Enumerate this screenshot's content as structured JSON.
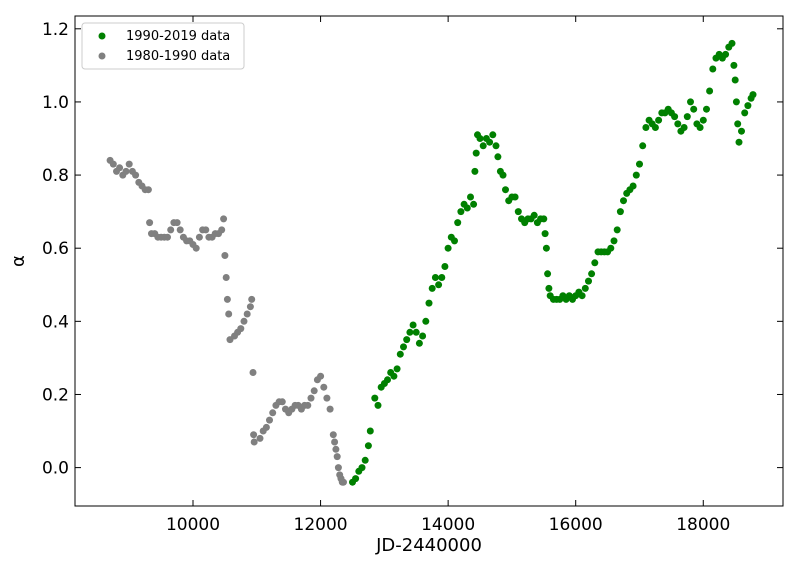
{
  "chart_data": {
    "type": "scatter",
    "title": "",
    "xlabel": "JD-2440000",
    "ylabel": "α",
    "xlim": [
      8150,
      19250
    ],
    "ylim": [
      -0.105,
      1.235
    ],
    "xticks": [
      10000,
      12000,
      14000,
      16000,
      18000
    ],
    "xtick_labels": [
      "10000",
      "12000",
      "14000",
      "16000",
      "18000"
    ],
    "yticks": [
      0.0,
      0.2,
      0.4,
      0.6,
      0.8,
      1.0,
      1.2
    ],
    "ytick_labels": [
      "0.0",
      "0.2",
      "0.4",
      "0.6",
      "0.8",
      "1.0",
      "1.2"
    ],
    "grid": false,
    "legend_position": "top-left",
    "series": [
      {
        "name": "1990-2019 data",
        "color": "#008000",
        "points": [
          [
            12500,
            -0.04
          ],
          [
            12550,
            -0.03
          ],
          [
            12600,
            -0.01
          ],
          [
            12650,
            0.0
          ],
          [
            12700,
            0.02
          ],
          [
            12750,
            0.06
          ],
          [
            12780,
            0.1
          ],
          [
            12850,
            0.19
          ],
          [
            12900,
            0.17
          ],
          [
            12950,
            0.22
          ],
          [
            13000,
            0.23
          ],
          [
            13050,
            0.24
          ],
          [
            13100,
            0.26
          ],
          [
            13150,
            0.25
          ],
          [
            13200,
            0.27
          ],
          [
            13250,
            0.31
          ],
          [
            13300,
            0.33
          ],
          [
            13350,
            0.35
          ],
          [
            13400,
            0.37
          ],
          [
            13450,
            0.39
          ],
          [
            13500,
            0.37
          ],
          [
            13550,
            0.34
          ],
          [
            13600,
            0.36
          ],
          [
            13650,
            0.4
          ],
          [
            13700,
            0.45
          ],
          [
            13750,
            0.49
          ],
          [
            13800,
            0.52
          ],
          [
            13850,
            0.5
          ],
          [
            13900,
            0.52
          ],
          [
            13950,
            0.55
          ],
          [
            14000,
            0.6
          ],
          [
            14050,
            0.63
          ],
          [
            14100,
            0.62
          ],
          [
            14150,
            0.67
          ],
          [
            14200,
            0.7
          ],
          [
            14250,
            0.72
          ],
          [
            14300,
            0.71
          ],
          [
            14350,
            0.74
          ],
          [
            14400,
            0.72
          ],
          [
            14420,
            0.81
          ],
          [
            14440,
            0.86
          ],
          [
            14460,
            0.91
          ],
          [
            14500,
            0.9
          ],
          [
            14550,
            0.88
          ],
          [
            14600,
            0.9
          ],
          [
            14650,
            0.89
          ],
          [
            14700,
            0.91
          ],
          [
            14750,
            0.88
          ],
          [
            14780,
            0.85
          ],
          [
            14820,
            0.81
          ],
          [
            14860,
            0.8
          ],
          [
            14900,
            0.76
          ],
          [
            14950,
            0.73
          ],
          [
            15000,
            0.74
          ],
          [
            15050,
            0.74
          ],
          [
            15100,
            0.7
          ],
          [
            15150,
            0.68
          ],
          [
            15200,
            0.67
          ],
          [
            15250,
            0.68
          ],
          [
            15300,
            0.68
          ],
          [
            15350,
            0.69
          ],
          [
            15400,
            0.67
          ],
          [
            15450,
            0.68
          ],
          [
            15500,
            0.68
          ],
          [
            15520,
            0.64
          ],
          [
            15540,
            0.6
          ],
          [
            15560,
            0.53
          ],
          [
            15580,
            0.49
          ],
          [
            15600,
            0.47
          ],
          [
            15650,
            0.46
          ],
          [
            15700,
            0.46
          ],
          [
            15750,
            0.46
          ],
          [
            15800,
            0.47
          ],
          [
            15850,
            0.46
          ],
          [
            15900,
            0.47
          ],
          [
            15950,
            0.46
          ],
          [
            16000,
            0.47
          ],
          [
            16050,
            0.48
          ],
          [
            16100,
            0.47
          ],
          [
            16150,
            0.49
          ],
          [
            16200,
            0.51
          ],
          [
            16250,
            0.53
          ],
          [
            16300,
            0.56
          ],
          [
            16350,
            0.59
          ],
          [
            16400,
            0.59
          ],
          [
            16450,
            0.59
          ],
          [
            16500,
            0.59
          ],
          [
            16550,
            0.6
          ],
          [
            16600,
            0.62
          ],
          [
            16650,
            0.65
          ],
          [
            16700,
            0.7
          ],
          [
            16750,
            0.73
          ],
          [
            16800,
            0.75
          ],
          [
            16850,
            0.76
          ],
          [
            16900,
            0.77
          ],
          [
            16950,
            0.8
          ],
          [
            17000,
            0.83
          ],
          [
            17050,
            0.88
          ],
          [
            17100,
            0.93
          ],
          [
            17150,
            0.95
          ],
          [
            17200,
            0.94
          ],
          [
            17250,
            0.93
          ],
          [
            17300,
            0.95
          ],
          [
            17350,
            0.97
          ],
          [
            17400,
            0.97
          ],
          [
            17450,
            0.98
          ],
          [
            17500,
            0.97
          ],
          [
            17550,
            0.96
          ],
          [
            17600,
            0.94
          ],
          [
            17650,
            0.92
          ],
          [
            17700,
            0.93
          ],
          [
            17750,
            0.96
          ],
          [
            17800,
            1.0
          ],
          [
            17850,
            0.98
          ],
          [
            17900,
            0.94
          ],
          [
            17950,
            0.93
          ],
          [
            18000,
            0.95
          ],
          [
            18050,
            0.98
          ],
          [
            18100,
            1.03
          ],
          [
            18150,
            1.09
          ],
          [
            18200,
            1.12
          ],
          [
            18250,
            1.13
          ],
          [
            18300,
            1.12
          ],
          [
            18350,
            1.13
          ],
          [
            18400,
            1.15
          ],
          [
            18450,
            1.16
          ],
          [
            18480,
            1.1
          ],
          [
            18500,
            1.06
          ],
          [
            18520,
            1.0
          ],
          [
            18540,
            0.94
          ],
          [
            18560,
            0.89
          ],
          [
            18600,
            0.92
          ],
          [
            18650,
            0.97
          ],
          [
            18700,
            0.99
          ],
          [
            18750,
            1.01
          ],
          [
            18780,
            1.02
          ]
        ]
      },
      {
        "name": "1980-1990 data",
        "color": "#808080",
        "points": [
          [
            8700,
            0.84
          ],
          [
            8750,
            0.83
          ],
          [
            8800,
            0.81
          ],
          [
            8850,
            0.82
          ],
          [
            8900,
            0.8
          ],
          [
            8950,
            0.81
          ],
          [
            9000,
            0.83
          ],
          [
            9050,
            0.81
          ],
          [
            9100,
            0.8
          ],
          [
            9150,
            0.78
          ],
          [
            9200,
            0.77
          ],
          [
            9250,
            0.76
          ],
          [
            9300,
            0.76
          ],
          [
            9320,
            0.67
          ],
          [
            9350,
            0.64
          ],
          [
            9400,
            0.64
          ],
          [
            9450,
            0.63
          ],
          [
            9500,
            0.63
          ],
          [
            9550,
            0.63
          ],
          [
            9600,
            0.63
          ],
          [
            9650,
            0.65
          ],
          [
            9700,
            0.67
          ],
          [
            9750,
            0.67
          ],
          [
            9800,
            0.65
          ],
          [
            9850,
            0.63
          ],
          [
            9900,
            0.62
          ],
          [
            9950,
            0.62
          ],
          [
            10000,
            0.61
          ],
          [
            10050,
            0.6
          ],
          [
            10100,
            0.63
          ],
          [
            10150,
            0.65
          ],
          [
            10200,
            0.65
          ],
          [
            10250,
            0.63
          ],
          [
            10300,
            0.63
          ],
          [
            10350,
            0.64
          ],
          [
            10400,
            0.64
          ],
          [
            10450,
            0.65
          ],
          [
            10480,
            0.68
          ],
          [
            10500,
            0.58
          ],
          [
            10520,
            0.52
          ],
          [
            10540,
            0.46
          ],
          [
            10560,
            0.42
          ],
          [
            10580,
            0.35
          ],
          [
            10650,
            0.36
          ],
          [
            10700,
            0.37
          ],
          [
            10750,
            0.38
          ],
          [
            10800,
            0.4
          ],
          [
            10850,
            0.42
          ],
          [
            10900,
            0.44
          ],
          [
            10920,
            0.46
          ],
          [
            10940,
            0.26
          ],
          [
            10950,
            0.09
          ],
          [
            10960,
            0.07
          ],
          [
            11050,
            0.08
          ],
          [
            11100,
            0.1
          ],
          [
            11150,
            0.11
          ],
          [
            11200,
            0.13
          ],
          [
            11250,
            0.15
          ],
          [
            11300,
            0.17
          ],
          [
            11350,
            0.18
          ],
          [
            11400,
            0.18
          ],
          [
            11450,
            0.16
          ],
          [
            11500,
            0.15
          ],
          [
            11550,
            0.16
          ],
          [
            11600,
            0.17
          ],
          [
            11650,
            0.17
          ],
          [
            11700,
            0.16
          ],
          [
            11750,
            0.17
          ],
          [
            11800,
            0.17
          ],
          [
            11850,
            0.19
          ],
          [
            11900,
            0.21
          ],
          [
            11950,
            0.24
          ],
          [
            12000,
            0.25
          ],
          [
            12050,
            0.22
          ],
          [
            12100,
            0.19
          ],
          [
            12150,
            0.16
          ],
          [
            12200,
            0.09
          ],
          [
            12220,
            0.07
          ],
          [
            12240,
            0.05
          ],
          [
            12260,
            0.03
          ],
          [
            12280,
            0.0
          ],
          [
            12300,
            -0.02
          ],
          [
            12320,
            -0.03
          ],
          [
            12340,
            -0.04
          ],
          [
            12360,
            -0.04
          ]
        ]
      }
    ]
  }
}
